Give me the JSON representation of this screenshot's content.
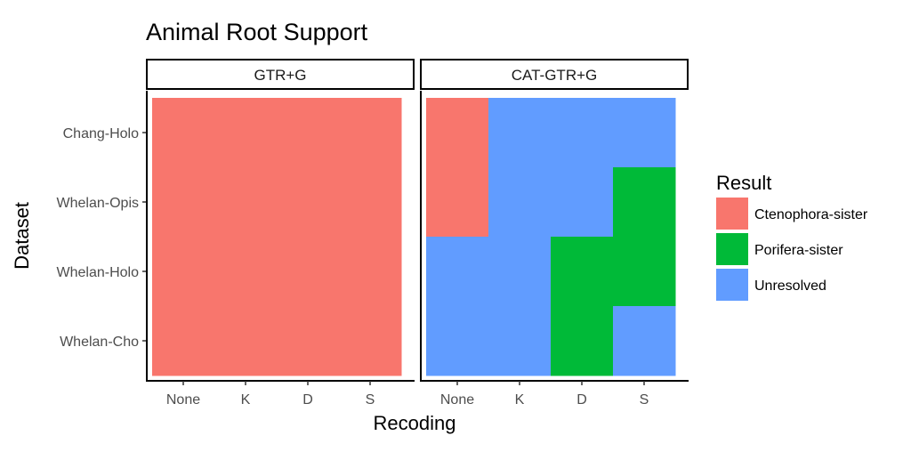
{
  "chart_data": {
    "type": "heatmap",
    "title": "Animal Root Support",
    "xlabel": "Recoding",
    "ylabel": "Dataset",
    "x_categories": [
      "None",
      "K",
      "D",
      "S"
    ],
    "y_categories": [
      "Chang-Holo",
      "Whelan-Opis",
      "Whelan-Holo",
      "Whelan-Cho"
    ],
    "facets": [
      {
        "label": "GTR+G",
        "cells": [
          [
            "Ctenophora-sister",
            "Ctenophora-sister",
            "Ctenophora-sister",
            "Ctenophora-sister"
          ],
          [
            "Ctenophora-sister",
            "Ctenophora-sister",
            "Ctenophora-sister",
            "Ctenophora-sister"
          ],
          [
            "Ctenophora-sister",
            "Ctenophora-sister",
            "Ctenophora-sister",
            "Ctenophora-sister"
          ],
          [
            "Ctenophora-sister",
            "Ctenophora-sister",
            "Ctenophora-sister",
            "Ctenophora-sister"
          ]
        ]
      },
      {
        "label": "CAT-GTR+G",
        "cells": [
          [
            "Ctenophora-sister",
            "Unresolved",
            "Unresolved",
            "Unresolved"
          ],
          [
            "Ctenophora-sister",
            "Unresolved",
            "Unresolved",
            "Porifera-sister"
          ],
          [
            "Unresolved",
            "Unresolved",
            "Porifera-sister",
            "Porifera-sister"
          ],
          [
            "Unresolved",
            "Unresolved",
            "Porifera-sister",
            "Unresolved"
          ]
        ]
      }
    ],
    "legend": {
      "title": "Result",
      "position": "right",
      "items": [
        {
          "label": "Ctenophora-sister",
          "color": "#F8766D"
        },
        {
          "label": "Porifera-sister",
          "color": "#00BA38"
        },
        {
          "label": "Unresolved",
          "color": "#619CFF"
        }
      ]
    },
    "grid": false
  }
}
